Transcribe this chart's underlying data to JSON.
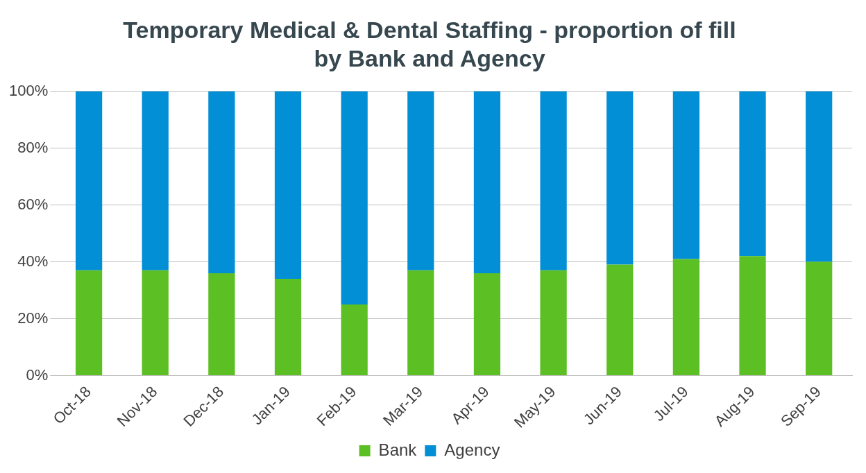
{
  "chart_data": {
    "type": "bar",
    "title": [
      "Temporary Medical & Dental Staffing - proportion of fill",
      "by Bank and Agency"
    ],
    "categories": [
      "Oct-18",
      "Nov-18",
      "Dec-18",
      "Jan-19",
      "Feb-19",
      "Mar-19",
      "Apr-19",
      "May-19",
      "Jun-19",
      "Jul-19",
      "Aug-19",
      "Sep-19"
    ],
    "series": [
      {
        "name": "Bank",
        "color": "#5cbf23",
        "values": [
          37,
          37,
          36,
          34,
          25,
          37,
          36,
          37,
          39,
          41,
          42,
          40
        ]
      },
      {
        "name": "Agency",
        "color": "#038fd6",
        "values": [
          63,
          63,
          64,
          66,
          75,
          63,
          64,
          63,
          61,
          59,
          58,
          60
        ]
      }
    ],
    "stacked": true,
    "ylim": [
      0,
      100
    ],
    "yticks": [
      {
        "value": 0,
        "label": "0%"
      },
      {
        "value": 20,
        "label": "20%"
      },
      {
        "value": 40,
        "label": "40%"
      },
      {
        "value": 60,
        "label": "60%"
      },
      {
        "value": 80,
        "label": "80%"
      },
      {
        "value": 100,
        "label": "100%"
      }
    ],
    "grid": "y",
    "legend": "bottom"
  }
}
